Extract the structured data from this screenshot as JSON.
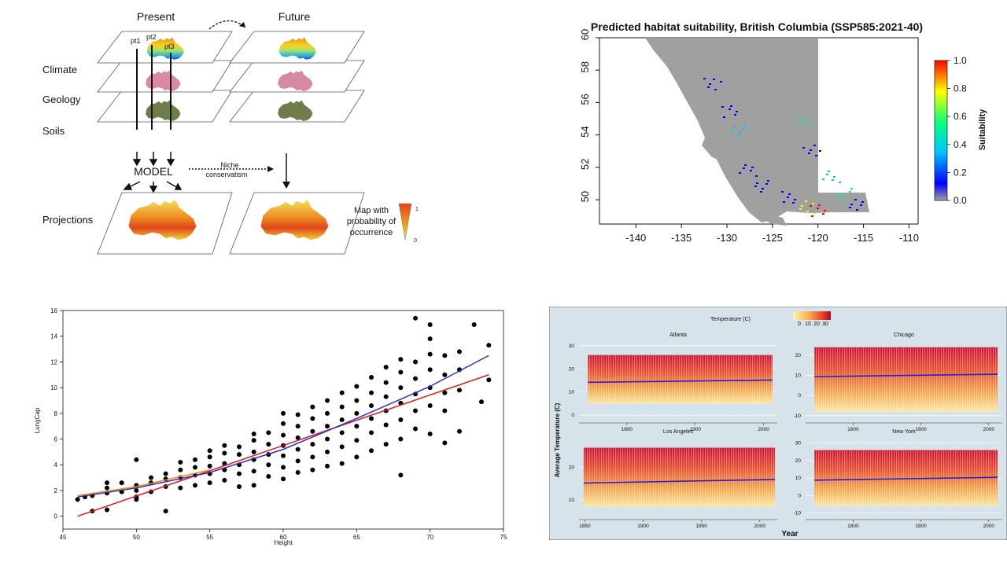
{
  "diagram": {
    "present_label": "Present",
    "future_label": "Future",
    "layers": [
      "Climate",
      "Geology",
      "Soils"
    ],
    "points": [
      "pt1",
      "pt2",
      "pt3"
    ],
    "model_label": "MODEL",
    "niche_label_1": "Niche",
    "niche_label_2": "conservatism",
    "projections_label": "Projections",
    "legend_text": [
      "Map with",
      "probability of",
      "occurrence"
    ],
    "legend_max": "1",
    "legend_min": "0",
    "colors": {
      "hot": "#e0451b",
      "mid": "#f2c40f",
      "cool": "#1e88e5"
    }
  },
  "chart_data": [
    {
      "type": "heatmap",
      "title": "Predicted habitat suitability, British Columbia (SSP585:2021-40)",
      "xlim": [
        -144,
        -109
      ],
      "ylim": [
        48.5,
        60
      ],
      "xticks": [
        "-140",
        "-135",
        "-130",
        "-125",
        "-120",
        "-115",
        "-110"
      ],
      "yticks": [
        "50",
        "52",
        "54",
        "56",
        "58",
        "60"
      ],
      "colorbar": {
        "label": "Suitability",
        "ticks": [
          "0.0",
          "0.2",
          "0.4",
          "0.6",
          "0.8",
          "1.0"
        ],
        "colors": [
          "#a0a0a0",
          "#0000ff",
          "#00c8ff",
          "#00ff7f",
          "#ffff00",
          "#ff0000"
        ]
      }
    },
    {
      "type": "scatter",
      "xlabel": "Height",
      "ylabel": "LungCap",
      "xlim": [
        45,
        75
      ],
      "ylim": [
        -1,
        16
      ],
      "xticks": [
        "45",
        "50",
        "55",
        "60",
        "65",
        "70",
        "75"
      ],
      "yticks": [
        "0",
        "2",
        "4",
        "6",
        "8",
        "10",
        "12",
        "14",
        "16"
      ],
      "points": [
        [
          46,
          1.3
        ],
        [
          46.5,
          1.5
        ],
        [
          47,
          0.4
        ],
        [
          47,
          1.6
        ],
        [
          48,
          0.5
        ],
        [
          48,
          1.8
        ],
        [
          48,
          2.2
        ],
        [
          48,
          2.6
        ],
        [
          49,
          1.9
        ],
        [
          49,
          2.6
        ],
        [
          50,
          1.3
        ],
        [
          50,
          1.5
        ],
        [
          50,
          2.0
        ],
        [
          50,
          2.4
        ],
        [
          50,
          4.4
        ],
        [
          51,
          1.9
        ],
        [
          51,
          2.6
        ],
        [
          51,
          3.0
        ],
        [
          52,
          0.4
        ],
        [
          52,
          2.3
        ],
        [
          52,
          2.9
        ],
        [
          52,
          3.3
        ],
        [
          53,
          2.2
        ],
        [
          53,
          3.0
        ],
        [
          53,
          3.6
        ],
        [
          53,
          4.2
        ],
        [
          54,
          2.4
        ],
        [
          54,
          3.2
        ],
        [
          54,
          3.8
        ],
        [
          54,
          4.4
        ],
        [
          55,
          2.6
        ],
        [
          55,
          3.3
        ],
        [
          55,
          3.9
        ],
        [
          55,
          4.6
        ],
        [
          55,
          5.1
        ],
        [
          56,
          2.8
        ],
        [
          56,
          3.6
        ],
        [
          56,
          4.1
        ],
        [
          56,
          4.9
        ],
        [
          56,
          5.5
        ],
        [
          57,
          2.3
        ],
        [
          57,
          3.3
        ],
        [
          57,
          4.0
        ],
        [
          57,
          4.8
        ],
        [
          57,
          5.4
        ],
        [
          58,
          2.4
        ],
        [
          58,
          3.5
        ],
        [
          58,
          4.4
        ],
        [
          58,
          5.0
        ],
        [
          58,
          5.9
        ],
        [
          58,
          6.4
        ],
        [
          59,
          3.1
        ],
        [
          59,
          4.0
        ],
        [
          59,
          4.8
        ],
        [
          59,
          5.6
        ],
        [
          59,
          6.5
        ],
        [
          60,
          2.9
        ],
        [
          60,
          3.8
        ],
        [
          60,
          4.7
        ],
        [
          60,
          5.5
        ],
        [
          60,
          6.3
        ],
        [
          60,
          7.2
        ],
        [
          60,
          8.0
        ],
        [
          61,
          3.4
        ],
        [
          61,
          4.3
        ],
        [
          61,
          5.2
        ],
        [
          61,
          6.1
        ],
        [
          61,
          7.0
        ],
        [
          61,
          7.9
        ],
        [
          62,
          3.6
        ],
        [
          62,
          4.6
        ],
        [
          62,
          5.6
        ],
        [
          62,
          6.6
        ],
        [
          62,
          7.6
        ],
        [
          62,
          8.5
        ],
        [
          63,
          3.9
        ],
        [
          63,
          5.0
        ],
        [
          63,
          6.0
        ],
        [
          63,
          7.0
        ],
        [
          63,
          8.0
        ],
        [
          63,
          9.0
        ],
        [
          64,
          4.1
        ],
        [
          64,
          5.4
        ],
        [
          64,
          6.5
        ],
        [
          64,
          7.5
        ],
        [
          64,
          8.5
        ],
        [
          64,
          9.6
        ],
        [
          65,
          4.6
        ],
        [
          65,
          5.9
        ],
        [
          65,
          7.0
        ],
        [
          65,
          8.0
        ],
        [
          65,
          9.0
        ],
        [
          65,
          10.1
        ],
        [
          66,
          5.1
        ],
        [
          66,
          6.5
        ],
        [
          66,
          7.6
        ],
        [
          66,
          8.6
        ],
        [
          66,
          9.6
        ],
        [
          66,
          10.8
        ],
        [
          67,
          5.6
        ],
        [
          67,
          7.1
        ],
        [
          67,
          8.2
        ],
        [
          67,
          9.3
        ],
        [
          67,
          10.4
        ],
        [
          67,
          11.6
        ],
        [
          68,
          3.2
        ],
        [
          68,
          6.0
        ],
        [
          68,
          7.5
        ],
        [
          68,
          8.8
        ],
        [
          68,
          10.0
        ],
        [
          68,
          11.2
        ],
        [
          68,
          12.2
        ],
        [
          69,
          6.8
        ],
        [
          69,
          8.2
        ],
        [
          69,
          9.5
        ],
        [
          69,
          10.7
        ],
        [
          69,
          12.0
        ],
        [
          69,
          15.4
        ],
        [
          70,
          6.4
        ],
        [
          70,
          8.6
        ],
        [
          70,
          10.0
        ],
        [
          70,
          11.4
        ],
        [
          70,
          12.6
        ],
        [
          70,
          13.8
        ],
        [
          70,
          14.9
        ],
        [
          71,
          5.7
        ],
        [
          71,
          8.2
        ],
        [
          71,
          9.6
        ],
        [
          71,
          11.0
        ],
        [
          71,
          12.5
        ],
        [
          72,
          6.6
        ],
        [
          72,
          9.8
        ],
        [
          72,
          11.4
        ],
        [
          72,
          12.8
        ],
        [
          73,
          14.9
        ],
        [
          73.5,
          8.9
        ],
        [
          74,
          10.6
        ],
        [
          74,
          13.3
        ]
      ],
      "series": [
        {
          "name": "",
          "color": "#e31a1c",
          "x": [
            46,
            74
          ],
          "y": [
            0.0,
            11.0
          ]
        },
        {
          "name": "",
          "color": "#2b2bd0",
          "x": [
            46,
            50,
            55,
            60,
            65,
            70,
            74
          ],
          "y": [
            1.5,
            2.2,
            3.4,
            5.2,
            7.6,
            10.1,
            12.5
          ]
        },
        {
          "name": "",
          "color": "#ff8c00",
          "x": [
            46,
            50,
            55
          ],
          "y": [
            1.6,
            2.3,
            3.6
          ]
        }
      ]
    },
    {
      "type": "area",
      "ylabel": "Average Temperature (C)",
      "xlabel": "Year",
      "legend": {
        "label": "Temperature (C)",
        "ticks": [
          "0",
          "10",
          "20",
          "30"
        ]
      },
      "panels": [
        {
          "name": "Atlanta",
          "xlim": [
            1730,
            2020
          ],
          "ylim": [
            -2,
            32
          ],
          "xticks": [
            "1800",
            "1900",
            "2000"
          ],
          "yticks": [
            "0",
            "10",
            "20",
            "30"
          ],
          "trend": [
            14.2,
            15.2
          ],
          "band": [
            5,
            26
          ]
        },
        {
          "name": "Chicago",
          "xlim": [
            1730,
            2020
          ],
          "ylim": [
            -12,
            27
          ],
          "xticks": [
            "1800",
            "1900",
            "2000"
          ],
          "yticks": [
            "-10",
            "0",
            "10",
            "20"
          ],
          "trend": [
            9.4,
            10.6
          ],
          "band": [
            -8,
            24
          ]
        },
        {
          "name": "Los Angeles",
          "xlim": [
            1845,
            2015
          ],
          "ylim": [
            5,
            29
          ],
          "xticks": [
            "1850",
            "1900",
            "1950",
            "2000"
          ],
          "yticks": [
            "10",
            "20"
          ],
          "trend": [
            15.2,
            16.3
          ],
          "band": [
            8,
            26
          ]
        },
        {
          "name": "New York",
          "xlim": [
            1730,
            2020
          ],
          "ylim": [
            -12,
            33
          ],
          "xticks": [
            "1800",
            "1900",
            "2000"
          ],
          "yticks": [
            "-10",
            "0",
            "10",
            "20",
            "30"
          ],
          "trend": [
            8.8,
            10.4
          ],
          "band": [
            -6,
            26
          ]
        }
      ]
    }
  ]
}
